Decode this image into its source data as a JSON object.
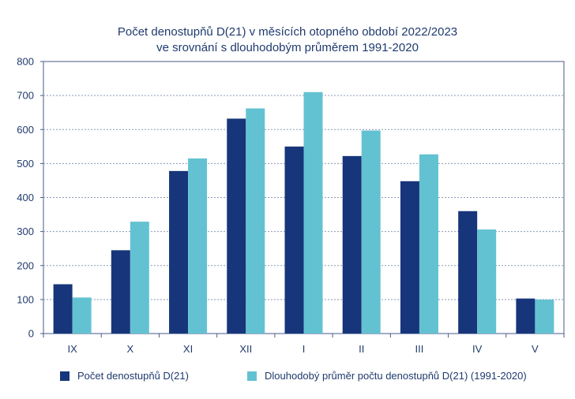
{
  "chart_data": {
    "type": "bar",
    "title": "Počet denostupňů D(21) v měsících otopného období 2022/2023",
    "subtitle": "ve srovnání s dlouhodobým průměrem 1991-2020",
    "xlabel": "",
    "ylabel": "",
    "ylim": [
      0,
      800
    ],
    "yticks": [
      "0",
      "100",
      "200",
      "300",
      "400",
      "500",
      "600",
      "700",
      "800"
    ],
    "grid": "horizontal dotted",
    "legend_position": "bottom",
    "categories": [
      "IX",
      "X",
      "XI",
      "XII",
      "I",
      "II",
      "III",
      "IV",
      "V"
    ],
    "series": [
      {
        "name": "Počet denostupňů D(21)",
        "color": "#17357a",
        "values": [
          145,
          245,
          478,
          632,
          550,
          522,
          448,
          360,
          103
        ]
      },
      {
        "name": "Dlouhodobý průměr počtu denostupňů D(21) (1991-2020)",
        "color": "#63c2d2",
        "values": [
          106,
          329,
          515,
          662,
          710,
          597,
          527,
          306,
          100
        ]
      }
    ]
  }
}
